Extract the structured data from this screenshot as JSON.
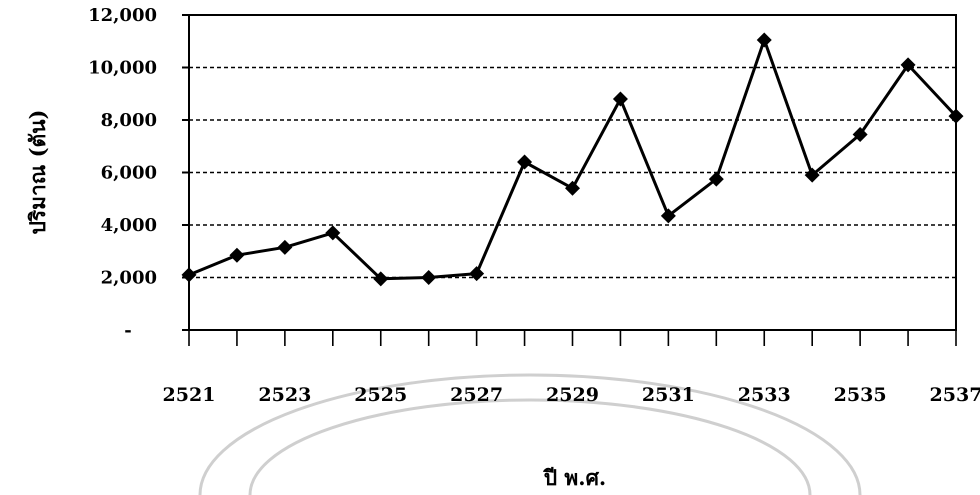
{
  "chart_data": {
    "type": "line",
    "title": "",
    "xlabel": "ปี พ.ศ.",
    "ylabel": "ปริมาณ (ตัน)",
    "x": [
      2521,
      2522,
      2523,
      2524,
      2525,
      2526,
      2527,
      2528,
      2529,
      2530,
      2531,
      2532,
      2533,
      2534,
      2535,
      2536,
      2537
    ],
    "series": [
      {
        "values": [
          2100,
          2850,
          3150,
          3700,
          1950,
          2000,
          2150,
          6400,
          5400,
          8800,
          4350,
          5750,
          11050,
          5900,
          7450,
          10100,
          8150
        ]
      }
    ],
    "ylim": [
      0,
      12000
    ],
    "yticks": [
      0,
      2000,
      4000,
      6000,
      8000,
      10000,
      12000
    ],
    "ytick_labels": [
      "-",
      "2,000",
      "4,000",
      "6,000",
      "8,000",
      "10,000",
      "12,000"
    ],
    "xtick_labels": [
      "2521",
      "2523",
      "2525",
      "2527",
      "2529",
      "2531",
      "2533",
      "2535",
      "2537"
    ],
    "grid": true,
    "marker": "diamond",
    "line_color": "#000000",
    "legend": false
  }
}
